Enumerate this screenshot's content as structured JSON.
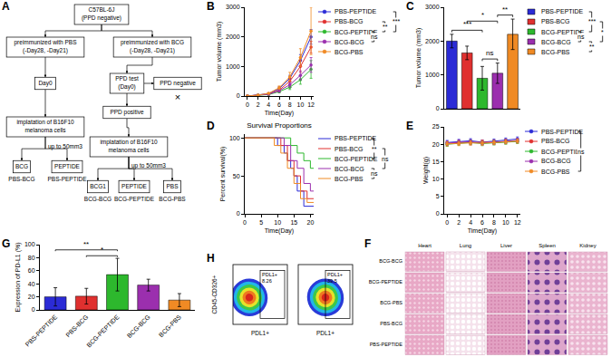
{
  "diagram": {
    "panel": "A",
    "nodes": [
      {
        "text": [
          "C57BL-6J",
          "(PPD negative)"
        ],
        "box": true
      },
      {
        "text": [
          "preimmunized with PBS",
          "(-Day28, -Day21)"
        ],
        "box": true
      },
      {
        "text": [
          "preimmunized with BCG",
          "(-Day28, -Day21)"
        ],
        "box": true
      },
      {
        "text": [
          "Day0"
        ],
        "box": true
      },
      {
        "text": [
          "PPD test",
          "(Day0)"
        ],
        "box": true
      },
      {
        "text": [
          "PPD negative"
        ],
        "box": true
      },
      {
        "text": [
          "PPD positive"
        ],
        "box": true
      },
      {
        "text": [
          "implatation of B16F10",
          "melanoma cells"
        ],
        "box": true
      },
      {
        "text": [
          "up to 50mm3"
        ],
        "box": false
      },
      {
        "text": [
          "implatation of B16F10",
          "melanoma cells"
        ],
        "box": true
      },
      {
        "text": [
          "up to 50mm3"
        ],
        "box": false
      },
      {
        "text": [
          "BCG"
        ],
        "box": true
      },
      {
        "text": [
          "PEPTIDE"
        ],
        "box": true
      },
      {
        "text": [
          "PBS-BCG"
        ],
        "box": false
      },
      {
        "text": [
          "PBS-PEPTIDE"
        ],
        "box": false
      },
      {
        "text": [
          "BCG1"
        ],
        "box": true
      },
      {
        "text": [
          "PEPTIDE"
        ],
        "box": true
      },
      {
        "text": [
          "PBS"
        ],
        "box": true
      },
      {
        "text": [
          "BCG-BCG"
        ],
        "box": false
      },
      {
        "text": [
          "BCG-PEPTIDE"
        ],
        "box": false
      },
      {
        "text": [
          "BCG-PBS"
        ],
        "box": false
      },
      {
        "text": [
          "×"
        ],
        "box": false
      }
    ]
  },
  "chart_data": [
    {
      "panel": "B",
      "type": "line",
      "x": [
        0,
        2,
        4,
        6,
        8,
        10,
        12
      ],
      "x_label": "Time(Day)",
      "y_label": "Tumor volume (mm3)",
      "xlim": [
        -0.5,
        12.5
      ],
      "xticks": [
        0,
        2,
        4,
        6,
        8,
        10,
        12
      ],
      "ylim": [
        0,
        3000
      ],
      "yticks": [
        0,
        1000,
        2000,
        3000
      ],
      "marker": "circle",
      "legend": "right",
      "series": [
        {
          "name": "PBS-PEPTIDE",
          "color": "#2b2bd6",
          "values": [
            0,
            30,
            80,
            250,
            600,
            1200,
            2000
          ],
          "errors": [
            0,
            10,
            20,
            60,
            100,
            200,
            250
          ]
        },
        {
          "name": "PBS-BCG",
          "color": "#e0302f",
          "values": [
            0,
            25,
            70,
            200,
            500,
            1000,
            1650
          ],
          "errors": [
            0,
            10,
            20,
            50,
            100,
            200,
            200
          ]
        },
        {
          "name": "BCG-PEPTIDE",
          "color": "#2db82d",
          "values": [
            0,
            20,
            50,
            150,
            300,
            550,
            900
          ],
          "errors": [
            0,
            10,
            15,
            40,
            80,
            150,
            300
          ]
        },
        {
          "name": "BCG-BCG",
          "color": "#9b2fae",
          "values": [
            0,
            20,
            60,
            180,
            380,
            700,
            1050
          ],
          "errors": [
            0,
            10,
            20,
            50,
            80,
            150,
            250
          ]
        },
        {
          "name": "BCG-PBS",
          "color": "#f08a24",
          "values": [
            0,
            30,
            90,
            280,
            650,
            1300,
            2200
          ],
          "errors": [
            0,
            10,
            20,
            60,
            150,
            300,
            800
          ]
        }
      ],
      "significance": [
        {
          "from": "BCG-PEPTIDE",
          "to": "BCG-BCG",
          "label": "ns"
        },
        {
          "from": "PBS-BCG",
          "to": "BCG-PEPTIDE",
          "label": "**"
        },
        {
          "from": "PBS-PEPTIDE",
          "to": "BCG-PEPTIDE",
          "label": "***"
        }
      ]
    },
    {
      "panel": "C",
      "type": "bar",
      "y_label": "Tumor volume (mm3)",
      "categories": [
        "PBS-PEPTIDE",
        "PBS-BCG",
        "BCG-PEPTIDE",
        "BCG-BCG",
        "BCG-PBS"
      ],
      "values": [
        2000,
        1650,
        900,
        1050,
        2200
      ],
      "errors": [
        200,
        200,
        350,
        300,
        450
      ],
      "colors": [
        "#2b2bd6",
        "#e0302f",
        "#2db82d",
        "#9b2fae",
        "#f08a24"
      ],
      "ylim": [
        0,
        3000
      ],
      "yticks": [
        0,
        1000,
        2000,
        3000
      ],
      "legend": "right",
      "tick_labels": "y",
      "significance": [
        {
          "from": "PBS-PEPTIDE",
          "to": "BCG-PEPTIDE",
          "label": "***"
        },
        {
          "from": "PBS-BCG",
          "to": "BCG-BCG",
          "label": "*"
        },
        {
          "from": "BCG-PEPTIDE",
          "to": "BCG-BCG",
          "label": "ns"
        },
        {
          "from": "BCG-BCG",
          "to": "BCG-PBS",
          "label": "**"
        }
      ]
    },
    {
      "panel": "D",
      "type": "line",
      "title": "Survival Proportions",
      "x_label": "Time(Day)",
      "y_label": "Percent survival(%)",
      "xlim": [
        0,
        21
      ],
      "xticks": [
        0,
        5,
        10,
        15,
        20
      ],
      "ylim": [
        0,
        105
      ],
      "yticks": [
        0,
        50,
        100
      ],
      "line_style": "step",
      "legend": "right",
      "series": [
        {
          "name": "PBS-PEPTIDE",
          "color": "#2b2bd6",
          "x": [
            0,
            10,
            12,
            13,
            14,
            15,
            16,
            18,
            21
          ],
          "values": [
            100,
            90,
            80,
            70,
            60,
            50,
            30,
            10,
            10
          ]
        },
        {
          "name": "PBS-BCG",
          "color": "#e0302f",
          "x": [
            0,
            11,
            13,
            15,
            17,
            19,
            21
          ],
          "values": [
            100,
            90,
            70,
            50,
            30,
            20,
            20
          ]
        },
        {
          "name": "BCG-PEPTIDE",
          "color": "#2db82d",
          "x": [
            0,
            14,
            16,
            18,
            20,
            21
          ],
          "values": [
            100,
            90,
            80,
            70,
            60,
            60
          ]
        },
        {
          "name": "BCG-BCG",
          "color": "#9b2fae",
          "x": [
            0,
            12,
            14,
            16,
            18,
            20,
            21
          ],
          "values": [
            100,
            90,
            70,
            60,
            40,
            30,
            30
          ]
        },
        {
          "name": "BCG-PBS",
          "color": "#f08a24",
          "x": [
            0,
            9,
            11,
            13,
            15,
            17,
            19,
            21
          ],
          "values": [
            100,
            90,
            80,
            60,
            40,
            20,
            15,
            15
          ]
        }
      ],
      "significance": [
        {
          "from": "PBS-PEPTIDE",
          "to": "BCG-PEPTIDE",
          "label": "**"
        },
        {
          "from": "PBS-BCG",
          "to": "BCG-BCG",
          "label": "ns"
        },
        {
          "from": "BCG-BCG",
          "to": "BCG-PBS",
          "label": "ns"
        }
      ]
    },
    {
      "panel": "E",
      "type": "line",
      "x": [
        0,
        2,
        4,
        6,
        8,
        10,
        12
      ],
      "x_label": "Time(Day)",
      "y_label": "Weight(g)",
      "xlim": [
        -0.5,
        12.5
      ],
      "xticks": [
        0,
        2,
        4,
        6,
        8,
        10,
        12
      ],
      "ylim": [
        0,
        25
      ],
      "yticks": [
        0,
        5,
        10,
        15,
        20,
        25
      ],
      "marker": "circle",
      "legend": "right",
      "series": [
        {
          "name": "PBS-PEPTIDE",
          "color": "#2b2bd6",
          "values": [
            20.5,
            20.8,
            21,
            20.6,
            20.9,
            21.2,
            21.5
          ],
          "errors": [
            0.6,
            0.6,
            0.6,
            0.6,
            0.6,
            0.6,
            0.6
          ]
        },
        {
          "name": "PBS-BCG",
          "color": "#e0302f",
          "values": [
            20.2,
            20.5,
            20.4,
            20.6,
            20.5,
            20.8,
            21
          ],
          "errors": [
            0.6,
            0.6,
            0.6,
            0.6,
            0.6,
            0.6,
            0.6
          ]
        },
        {
          "name": "BCG-PEPTIDE",
          "color": "#2db82d",
          "values": [
            20,
            20.3,
            20.5,
            20.2,
            20.4,
            20.6,
            20.8
          ],
          "errors": [
            0.6,
            0.6,
            0.6,
            0.6,
            0.6,
            0.6,
            0.6
          ]
        },
        {
          "name": "BCG-BCG",
          "color": "#9b2fae",
          "values": [
            20.3,
            20.6,
            20.7,
            20.4,
            20.6,
            20.9,
            21.1
          ],
          "errors": [
            0.6,
            0.6,
            0.6,
            0.6,
            0.6,
            0.6,
            0.6
          ]
        },
        {
          "name": "BCG-PBS",
          "color": "#f08a24",
          "values": [
            20.1,
            20.2,
            20.4,
            20.3,
            20.5,
            20.7,
            20.9
          ],
          "errors": [
            0.6,
            0.6,
            0.6,
            0.6,
            0.6,
            0.6,
            0.6
          ]
        }
      ],
      "significance": [
        {
          "from": "PBS-PEPTIDE",
          "to": "BCG-PBS",
          "label": "ns"
        }
      ]
    },
    {
      "panel": "G",
      "type": "bar",
      "y_label": "Expression of PD-L1 (%)",
      "categories": [
        "PBS-PEPTIDE",
        "PBS-BCG",
        "BCG-PEPTIDE",
        "BCG-BCG",
        "BCG-PBS"
      ],
      "values": [
        20,
        21,
        54,
        38,
        15
      ],
      "errors": [
        14,
        12,
        25,
        9,
        10
      ],
      "colors": [
        "#2b2bd6",
        "#e0302f",
        "#2db82d",
        "#9b2fae",
        "#f08a24"
      ],
      "ylim": [
        0,
        100
      ],
      "yticks": [
        0,
        20,
        40,
        60,
        80,
        100
      ],
      "significance": [
        {
          "from": "PBS-PEPTIDE",
          "to": "BCG-PEPTIDE",
          "label": "**"
        },
        {
          "from": "PBS-BCG",
          "to": "BCG-PEPTIDE",
          "label": "*"
        }
      ]
    },
    {
      "panel": "H",
      "type": "flow_cytometry",
      "x_label": "PDL1+",
      "y_label": "CD45-CD326+",
      "tick_labels": false,
      "gates": [
        {
          "label": "PDL1+",
          "value": 8.26
        },
        {
          "label": "PDL1+",
          "value": 39.5
        }
      ]
    }
  ],
  "image_grid": {
    "panel": "F",
    "rows": [
      "BCG-BCG",
      "BCG-PEPTIDE",
      "BCG-PBS",
      "PBS-BCG",
      "PBS-PEPTIDE"
    ],
    "columns": [
      "Heart",
      "Lung",
      "Liver",
      "Spleen",
      "Kidney"
    ]
  }
}
